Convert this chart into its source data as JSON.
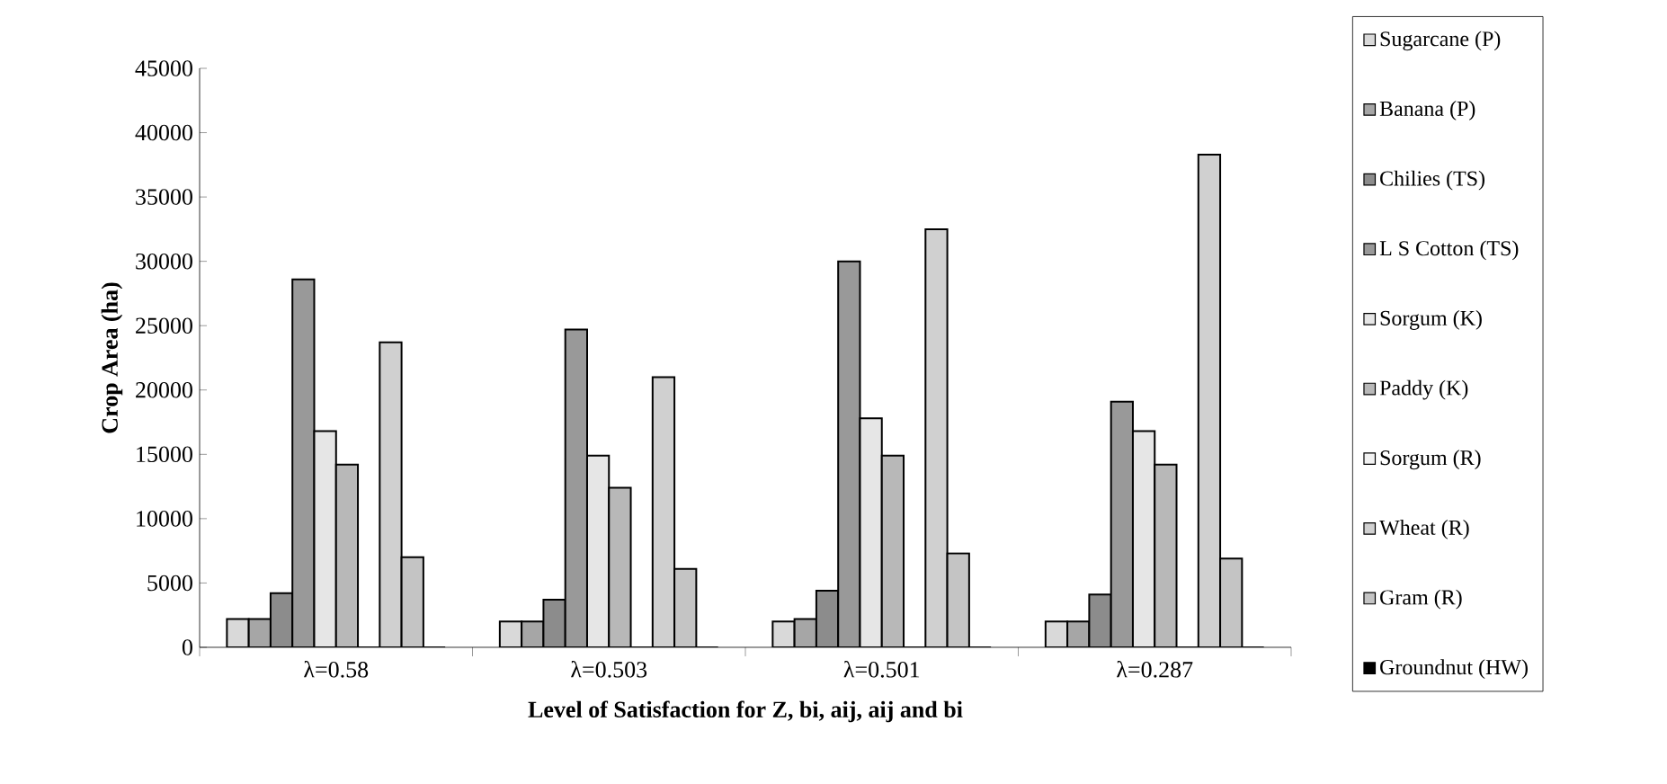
{
  "chart_data": {
    "type": "bar",
    "xlabel": "Level of Satisfaction for Z, bi, aij, aij and bi",
    "ylabel": "Crop Area (ha)",
    "categories": [
      "λ=0.58",
      "λ=0.503",
      "λ=0.501",
      "λ=0.287"
    ],
    "series": [
      {
        "name": "Sugarcane (P)",
        "color": "#d9d9d9",
        "values": [
          2200,
          2000,
          2000,
          2000
        ]
      },
      {
        "name": "Banana (P)",
        "color": "#a6a6a6",
        "values": [
          2200,
          2000,
          2200,
          2000
        ]
      },
      {
        "name": "Chilies (TS)",
        "color": "#8c8c8c",
        "values": [
          4200,
          3700,
          4400,
          4100
        ]
      },
      {
        "name": "L S Cotton (TS)",
        "color": "#999999",
        "values": [
          28600,
          24700,
          30000,
          19100
        ]
      },
      {
        "name": "Sorgum (K)",
        "color": "#e6e6e6",
        "values": [
          16800,
          14900,
          17800,
          16800
        ]
      },
      {
        "name": "Paddy (K)",
        "color": "#b8b8b8",
        "values": [
          14200,
          12400,
          14900,
          14200
        ]
      },
      {
        "name": "Sorgum (R)",
        "color": "#f2f2f2",
        "values": [
          0,
          0,
          0,
          0
        ]
      },
      {
        "name": "Wheat (R)",
        "color": "#d0d0d0",
        "values": [
          23700,
          21000,
          32500,
          38300
        ]
      },
      {
        "name": "Gram (R)",
        "color": "#c4c4c4",
        "values": [
          7000,
          6100,
          7300,
          6900
        ]
      },
      {
        "name": "Groundnut (HW)",
        "color": "#000000",
        "values": [
          0,
          0,
          0,
          0
        ]
      }
    ],
    "ylim": [
      0,
      45000
    ],
    "yticks": [
      0,
      5000,
      10000,
      15000,
      20000,
      25000,
      30000,
      35000,
      40000,
      45000
    ],
    "grid": false,
    "legend": "right"
  }
}
